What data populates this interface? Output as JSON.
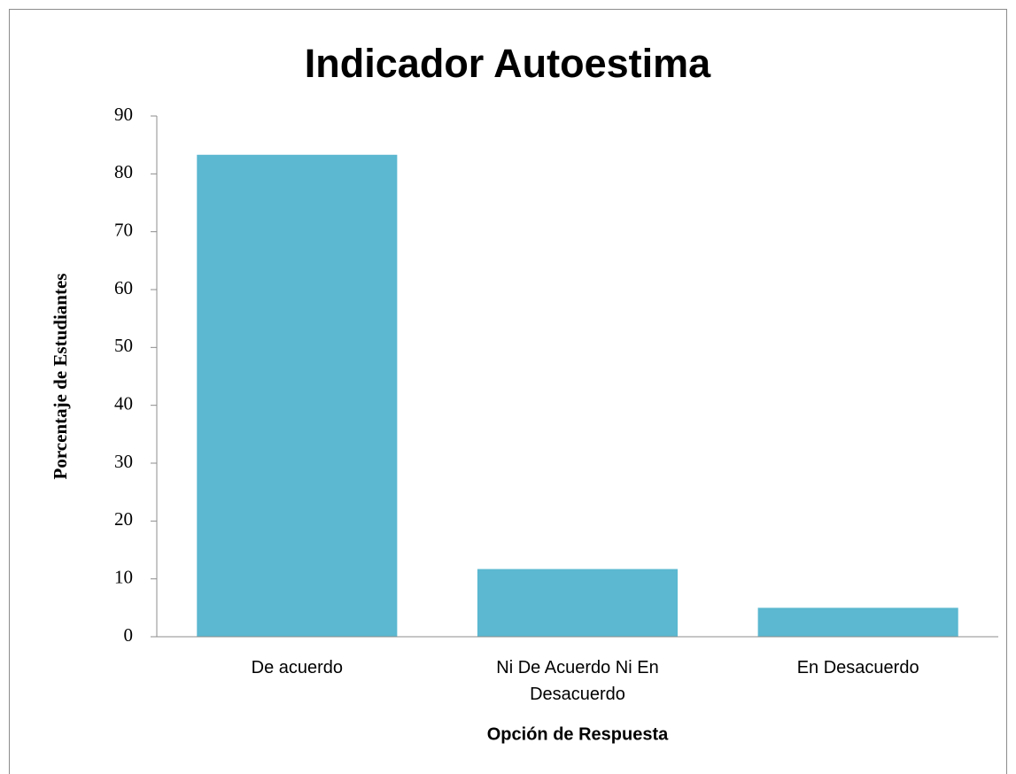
{
  "chart_data": {
    "type": "bar",
    "title": "Indicador Autoestima",
    "x_label": "Opción de Respuesta",
    "y_label": "Porcentaje de Estudiantes",
    "categories": [
      "De acuerdo",
      "Ni De Acuerdo Ni En Desacuerdo",
      "En Desacuerdo"
    ],
    "values": [
      83.3,
      11.7,
      5
    ],
    "color": "#5bb8d0",
    "ylim": [
      0,
      90
    ],
    "yticks": [
      0,
      10,
      20,
      30,
      40,
      50,
      60,
      70,
      80,
      90
    ],
    "grid": false
  }
}
